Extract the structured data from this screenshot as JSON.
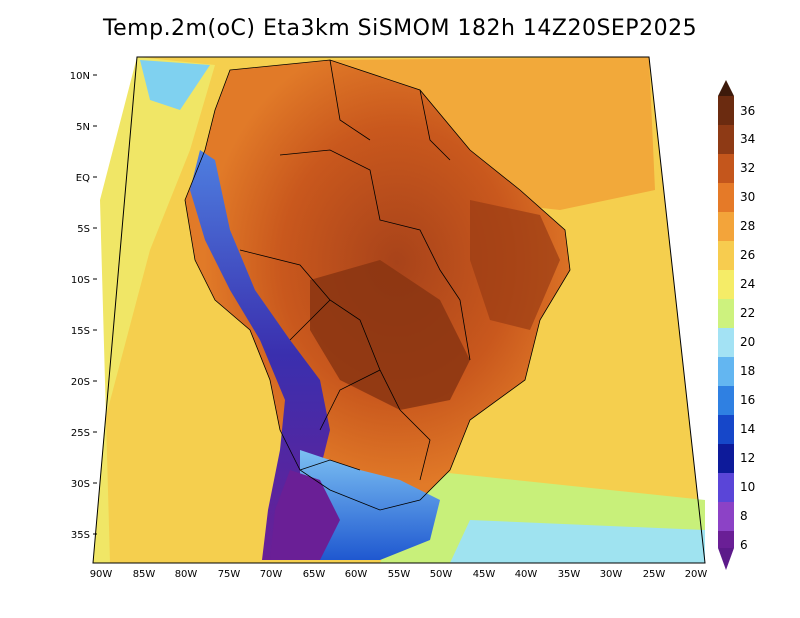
{
  "title": "Temp.2m(oC) Eta3km SiSMOM 182h 14Z20SEP2025",
  "axes": {
    "lat_labels": [
      "10N",
      "5N",
      "EQ",
      "5S",
      "10S",
      "15S",
      "20S",
      "25S",
      "30S",
      "35S"
    ],
    "lon_labels": [
      "90W",
      "85W",
      "80W",
      "75W",
      "70W",
      "65W",
      "60W",
      "55W",
      "50W",
      "45W",
      "40W",
      "35W",
      "30W",
      "25W",
      "20W"
    ]
  },
  "colorbar": {
    "levels": [
      "36",
      "34",
      "32",
      "30",
      "28",
      "26",
      "24",
      "22",
      "20",
      "18",
      "16",
      "14",
      "12",
      "10",
      "8",
      "6"
    ],
    "colors": [
      "#3d1a0b",
      "#7a2e12",
      "#b04a1a",
      "#e06a20",
      "#f29a35",
      "#f7c44a",
      "#f5e95e",
      "#c9f07a",
      "#9fe3f0",
      "#5eb7f0",
      "#2f7fe0",
      "#1446c8",
      "#0d1a9a",
      "#5a3fd6",
      "#8b3fc8",
      "#5c1a8a"
    ]
  }
}
